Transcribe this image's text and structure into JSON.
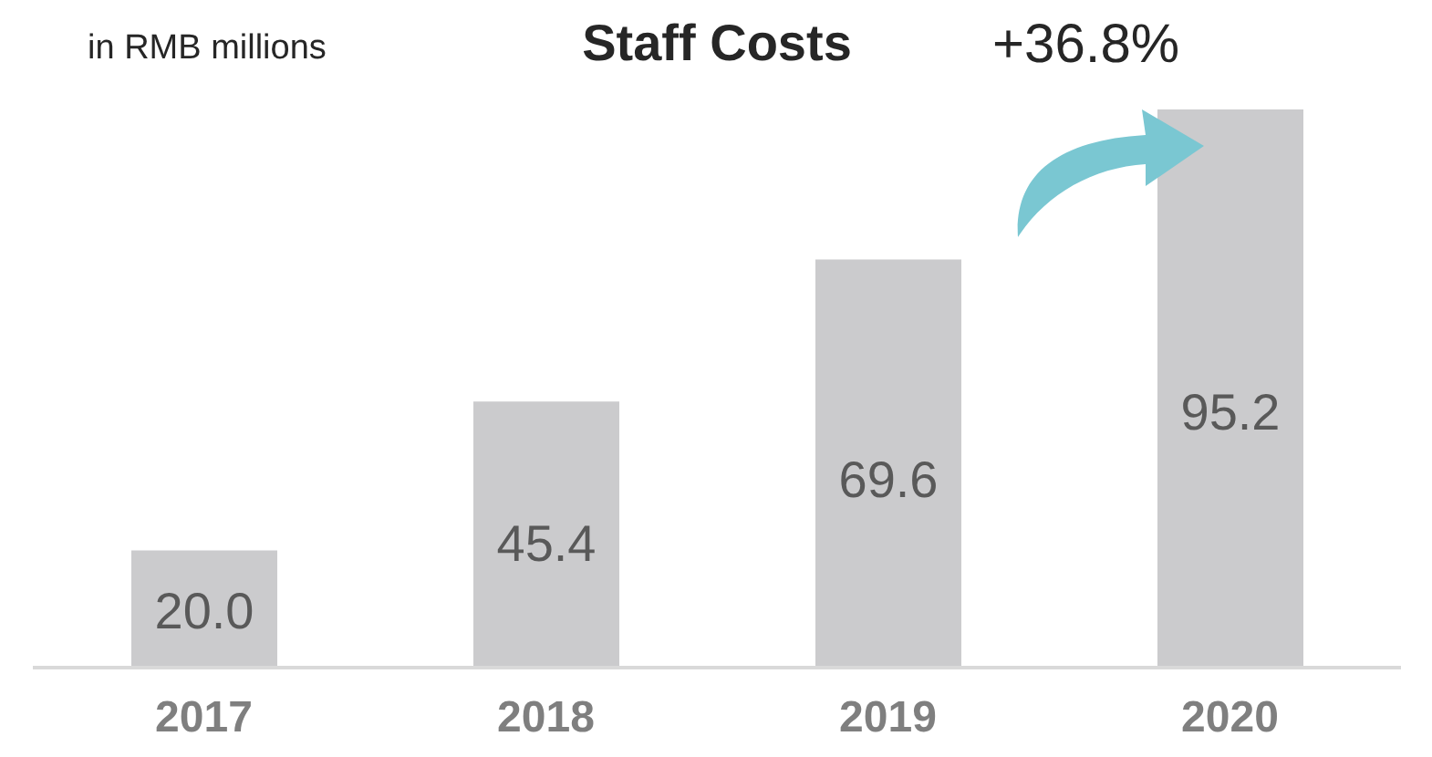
{
  "chart_data": {
    "type": "bar",
    "title": "Staff Costs",
    "subtitle": "in RMB millions",
    "categories": [
      "2017",
      "2018",
      "2019",
      "2020"
    ],
    "values": [
      20.0,
      45.4,
      69.6,
      95.2
    ],
    "value_labels": [
      "20.0",
      "45.4",
      "69.6",
      "95.2"
    ],
    "color": "#cbcbcd",
    "annotations": [
      "+36.8%"
    ]
  }
}
